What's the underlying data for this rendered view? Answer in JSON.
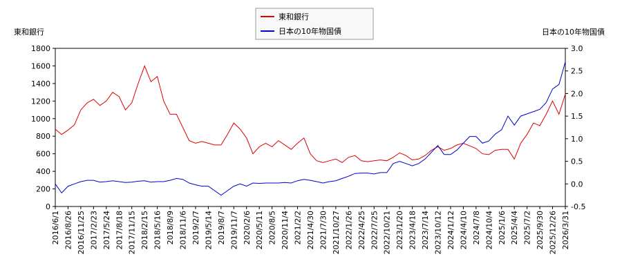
{
  "chart_data": {
    "type": "line",
    "y_label": "東和銀行",
    "y2_label": "日本の10年物国債",
    "categories": [
      "2016/6/1",
      null,
      "2016/8/26",
      null,
      "2016/11/25",
      null,
      "2017/2/23",
      null,
      "2017/5/24",
      null,
      "2017/8/18",
      null,
      "2017/11/15",
      null,
      "2018/2/15",
      null,
      "2018/5/16",
      null,
      "2018/8/9",
      null,
      "2018/11/6",
      null,
      "2019/2/7",
      null,
      "2019/5/14",
      null,
      "2019/8/7",
      null,
      "2019/11/7",
      null,
      "2020/2/6",
      null,
      "2020/5/11",
      null,
      "2020/8/5",
      null,
      "2020/11/4",
      null,
      "2021/2/2",
      null,
      "2021/4/30",
      null,
      "2021/7/30",
      null,
      "2021/10/27",
      null,
      "2022/1/26",
      null,
      "2022/4/25",
      null,
      "2022/7/25",
      null,
      "2022/10/21",
      null,
      "2023/1/20",
      null,
      "2023/4/18",
      null,
      "2023/7/14",
      null,
      "2023/10/12",
      null,
      "2024/1/12",
      null,
      "2024/4/10",
      null,
      "2024/7/8",
      null,
      "2024/10/4",
      null,
      "2025/1/6",
      null,
      "2025/4/4",
      null,
      "2025/7/2",
      null,
      "2025/9/30",
      null,
      "2025/12/26",
      null,
      "2026/3/31"
    ],
    "series": [
      {
        "name": "東和銀行",
        "color": "#dd0000",
        "axis": "y",
        "values": [
          880,
          820,
          870,
          930,
          1100,
          1180,
          1220,
          1150,
          1200,
          1300,
          1250,
          1100,
          1180,
          1400,
          1600,
          1420,
          1480,
          1200,
          1050,
          1050,
          900,
          750,
          720,
          740,
          720,
          700,
          700,
          820,
          950,
          880,
          780,
          600,
          680,
          720,
          680,
          750,
          700,
          650,
          720,
          780,
          600,
          520,
          500,
          520,
          540,
          500,
          560,
          580,
          520,
          510,
          520,
          530,
          520,
          560,
          610,
          580,
          530,
          540,
          580,
          640,
          680,
          640,
          660,
          700,
          720,
          690,
          660,
          600,
          590,
          640,
          650,
          650,
          540,
          720,
          820,
          950,
          920,
          1050,
          1200,
          1050,
          1280
        ]
      },
      {
        "name": "日本の10年物国債",
        "color": "#0000cc",
        "axis": "y2",
        "values": [
          0.0,
          -0.2,
          -0.05,
          0.0,
          0.05,
          0.08,
          0.08,
          0.04,
          0.05,
          0.07,
          0.05,
          0.03,
          0.04,
          0.06,
          0.07,
          0.04,
          0.05,
          0.05,
          0.08,
          0.12,
          0.1,
          0.02,
          -0.02,
          -0.05,
          -0.05,
          -0.15,
          -0.25,
          -0.15,
          -0.05,
          0.0,
          -0.05,
          0.02,
          0.01,
          0.02,
          0.02,
          0.02,
          0.03,
          0.02,
          0.07,
          0.1,
          0.08,
          0.05,
          0.02,
          0.05,
          0.07,
          0.12,
          0.17,
          0.23,
          0.24,
          0.24,
          0.22,
          0.25,
          0.25,
          0.45,
          0.5,
          0.45,
          0.4,
          0.45,
          0.55,
          0.7,
          0.85,
          0.65,
          0.65,
          0.75,
          0.9,
          1.05,
          1.05,
          0.9,
          0.95,
          1.1,
          1.2,
          1.5,
          1.3,
          1.5,
          1.55,
          1.6,
          1.65,
          1.8,
          2.1,
          2.2,
          2.7
        ]
      }
    ],
    "ylim": [
      0,
      1800
    ],
    "yticks": [
      0,
      200,
      400,
      600,
      800,
      1000,
      1200,
      1400,
      1600,
      1800
    ],
    "y2lim": [
      -0.5,
      3.0
    ],
    "y2ticks": [
      -0.5,
      {
        "value": 0,
        "label": "0.0"
      },
      0.5,
      {
        "value": 1,
        "label": "1.0"
      },
      1.5,
      {
        "value": 2,
        "label": "2.0"
      },
      2.5,
      {
        "value": 3,
        "label": "3.0"
      }
    ],
    "legend": "top",
    "grid": false
  }
}
